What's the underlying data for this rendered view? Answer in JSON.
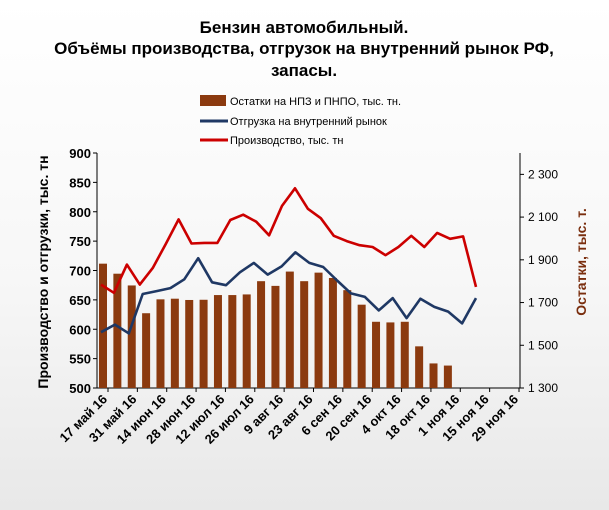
{
  "chart_data": {
    "type": "bar+line",
    "title": [
      "Бензин автомобильный.",
      "Объёмы производства,  отгрузок на внутренний рынок РФ,",
      "запасы."
    ],
    "ylabel_left": "Производство и отгрузки, тыс. тн",
    "ylabel_right": "Остатки, тыс. т.",
    "y_left_range": [
      500,
      900
    ],
    "y_left_ticks": [
      "500",
      "550",
      "600",
      "650",
      "700",
      "750",
      "800",
      "850",
      "900"
    ],
    "y_right_range": [
      1300,
      2400
    ],
    "y_right_ticks": [
      "1 300",
      "1 500",
      "1 700",
      "1 900",
      "2 100",
      "2 300"
    ],
    "x_ticks": [
      "17 май 16",
      "31 май 16",
      "14 июн 16",
      "28 июн 16",
      "12 июл 16",
      "26 июл 16",
      "9 авг 16",
      "23 авг 16",
      "6 сен 16",
      "20 сен 16",
      "4 окт 16",
      "18 окт 16",
      "1 ноя 16",
      "15 ноя 16",
      "29 ноя 16"
    ],
    "legend": {
      "placement": "top",
      "entries": [
        {
          "label": "Остатки  на НПЗ  и ПНПО, тыс. тн.",
          "color": "#8b3a0f",
          "kind": "bar"
        },
        {
          "label": "Отгрузка на внутренний  рынок",
          "color": "#1f3864",
          "kind": "line"
        },
        {
          "label": "Производство,  тыс. тн",
          "color": "#cc0000",
          "kind": "line"
        }
      ]
    },
    "series": [
      {
        "key": "stocks",
        "axis": "right",
        "type": "bar",
        "color": "#8b3a0f",
        "values": [
          1882,
          1835,
          1780,
          1650,
          1715,
          1718,
          1712,
          1713,
          1735,
          1735,
          1738,
          1800,
          1778,
          1845,
          1800,
          1840,
          1815,
          1758,
          1690,
          1610,
          1607,
          1610,
          1495,
          1415,
          1405
        ]
      },
      {
        "key": "shipments",
        "axis": "left",
        "type": "line",
        "color": "#1f3864",
        "values": [
          595,
          608,
          593,
          660,
          665,
          670,
          685,
          721,
          680,
          675,
          697,
          713,
          693,
          707,
          731,
          713,
          706,
          683,
          661,
          655,
          632,
          653,
          619,
          652,
          638,
          630,
          610,
          653
        ]
      },
      {
        "key": "production",
        "axis": "left",
        "type": "line",
        "color": "#cc0000",
        "values": [
          676,
          662,
          710,
          676,
          704,
          745,
          787,
          746,
          747,
          747,
          786,
          795,
          783,
          760,
          810,
          840,
          805,
          789,
          759,
          750,
          743,
          740,
          726,
          740,
          759,
          740,
          764,
          754,
          758,
          672
        ]
      }
    ]
  }
}
